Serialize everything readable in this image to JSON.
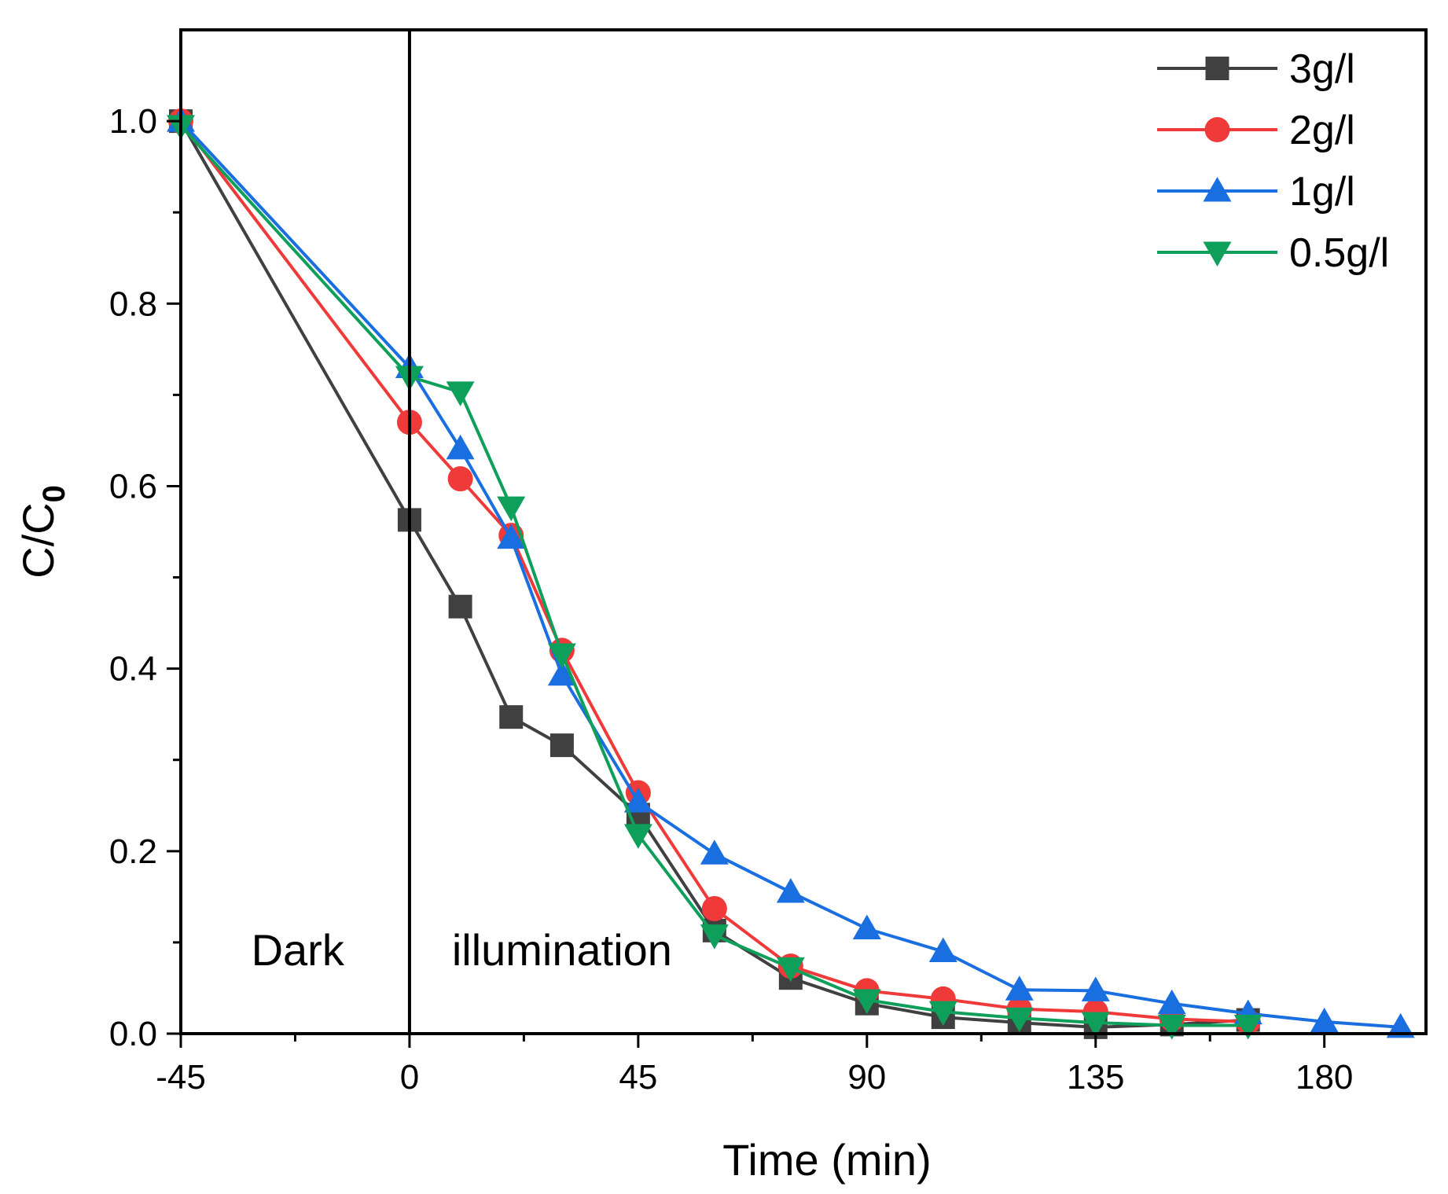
{
  "chart_data": {
    "type": "line",
    "xlabel": "Time (min)",
    "ylabel_main": "C/C",
    "ylabel_sub": "0",
    "xlim": [
      -45,
      200
    ],
    "ylim": [
      0,
      1.1
    ],
    "xticks": [
      -45,
      0,
      45,
      90,
      135,
      180
    ],
    "xtick_labels": [
      "-45",
      "0",
      "45",
      "90",
      "135",
      "180"
    ],
    "xminor": [
      -22.5,
      22.5,
      67.5,
      112.5,
      157.5
    ],
    "yticks": [
      0,
      0.2,
      0.4,
      0.6,
      0.8,
      1.0
    ],
    "ytick_labels": [
      "0.0",
      "0.2",
      "0.4",
      "0.6",
      "0.8",
      "1.0"
    ],
    "yminor": [
      0.1,
      0.3,
      0.5,
      0.7,
      0.9
    ],
    "divider_x": 0,
    "annotations": {
      "dark": "Dark",
      "illumination": "illumination"
    },
    "legend_position": "top-right",
    "series": [
      {
        "name": "3g/l",
        "color": "#404040",
        "marker": "square",
        "x": [
          -45,
          0,
          10,
          20,
          30,
          45,
          60,
          75,
          90,
          105,
          120,
          135,
          150,
          165
        ],
        "y": [
          1.0,
          0.563,
          0.468,
          0.347,
          0.316,
          0.24,
          0.113,
          0.061,
          0.033,
          0.018,
          0.012,
          0.007,
          0.01,
          0.015
        ]
      },
      {
        "name": "2g/l",
        "color": "#F03A3A",
        "marker": "circle",
        "x": [
          -45,
          0,
          10,
          20,
          30,
          45,
          60,
          75,
          90,
          105,
          120,
          135,
          150,
          165
        ],
        "y": [
          1.0,
          0.67,
          0.608,
          0.546,
          0.42,
          0.264,
          0.137,
          0.074,
          0.047,
          0.038,
          0.027,
          0.024,
          0.016,
          0.013
        ]
      },
      {
        "name": "1g/l",
        "color": "#1A6FE0",
        "marker": "triangle-up",
        "x": [
          -45,
          0,
          10,
          20,
          30,
          45,
          60,
          75,
          90,
          105,
          120,
          135,
          150,
          165,
          180,
          195
        ],
        "y": [
          1.0,
          0.73,
          0.641,
          0.543,
          0.393,
          0.254,
          0.197,
          0.155,
          0.115,
          0.09,
          0.048,
          0.047,
          0.033,
          0.022,
          0.013,
          0.007
        ]
      },
      {
        "name": "0.5g/l",
        "color": "#0E9F5A",
        "marker": "triangle-down",
        "x": [
          -45,
          0,
          10,
          20,
          30,
          45,
          60,
          75,
          90,
          105,
          120,
          135,
          150,
          165
        ],
        "y": [
          0.995,
          0.72,
          0.703,
          0.577,
          0.416,
          0.218,
          0.108,
          0.072,
          0.037,
          0.024,
          0.017,
          0.012,
          0.009,
          0.009
        ]
      }
    ]
  }
}
